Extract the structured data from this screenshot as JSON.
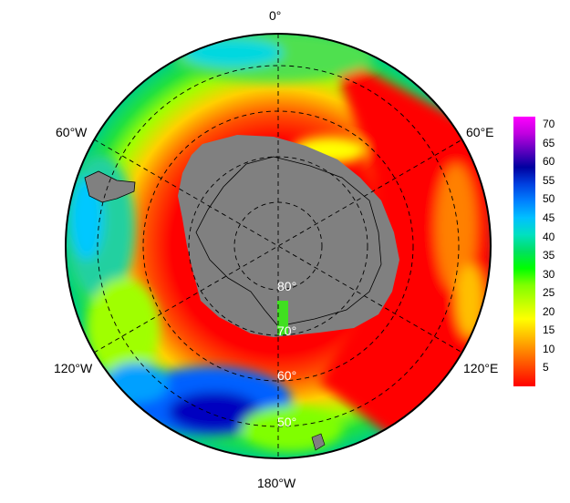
{
  "map": {
    "projection": "south-polar-stereographic",
    "longitude_labels": {
      "top": "0°",
      "upper_right": "60°E",
      "lower_right": "120°E",
      "bottom": "180°W",
      "lower_left": "120°W",
      "upper_left": "60°W"
    },
    "latitude_labels": [
      "80°",
      "70°",
      "60°",
      "50°"
    ],
    "land_color": "#808080",
    "colorbar": {
      "min": 0,
      "max": 72,
      "ticks": [
        "5",
        "10",
        "15",
        "20",
        "25",
        "30",
        "35",
        "40",
        "45",
        "50",
        "55",
        "60",
        "65",
        "70"
      ],
      "colors": [
        "#ff0000",
        "#ff4000",
        "#ff8000",
        "#ffc000",
        "#ffff00",
        "#c0ff00",
        "#80ff00",
        "#00ff00",
        "#00e060",
        "#00e0c0",
        "#00c0ff",
        "#0080ff",
        "#0040e0",
        "#0000a0",
        "#6000c0",
        "#c000e0",
        "#ff00ff"
      ]
    }
  }
}
